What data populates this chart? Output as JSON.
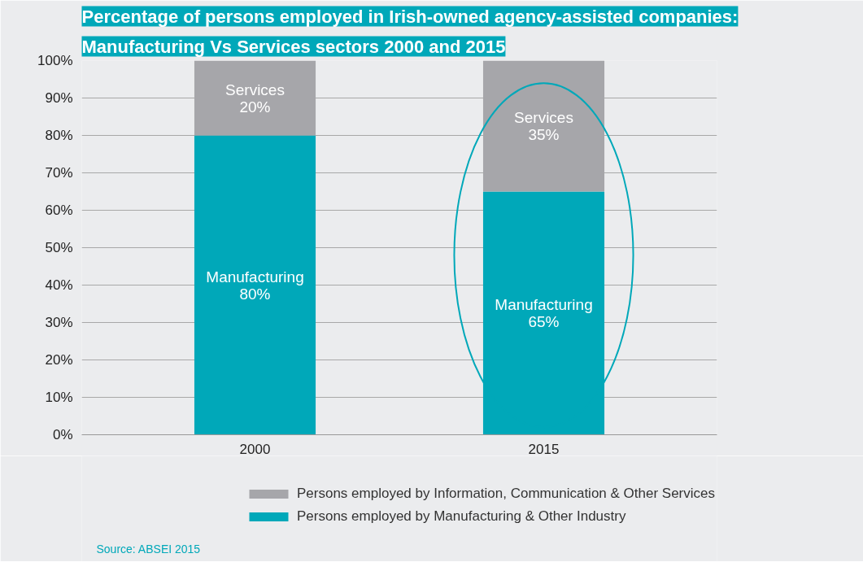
{
  "chart_data": {
    "type": "bar",
    "title": "Percentage of persons employed in Irish-owned agency-assisted companies:",
    "subtitle": "Manufacturing Vs Services sectors 2000 and 2015",
    "categories": [
      "2000",
      "2015"
    ],
    "stacked": true,
    "series": [
      {
        "name": "Persons employed by Manufacturing & Other Industry",
        "color": "#00a8b9",
        "values": [
          80,
          65
        ],
        "value_labels": [
          "Manufacturing\n80%",
          "Manufacturing\n65%"
        ]
      },
      {
        "name": "Persons employed by Information, Communication & Other Services",
        "color": "#a6a6aa",
        "values": [
          20,
          35
        ],
        "value_labels": [
          "Services\n20%",
          "Services\n35%"
        ]
      }
    ],
    "ylim": [
      0,
      100
    ],
    "yticks": [
      {
        "value": 0,
        "label": "0%"
      },
      {
        "value": 10,
        "label": "10%"
      },
      {
        "value": 20,
        "label": "20%"
      },
      {
        "value": 30,
        "label": "30%"
      },
      {
        "value": 40,
        "label": "40%"
      },
      {
        "value": 50,
        "label": "50%"
      },
      {
        "value": 60,
        "label": "60%"
      },
      {
        "value": 70,
        "label": "70%"
      },
      {
        "value": 80,
        "label": "80%"
      },
      {
        "value": 90,
        "label": "90%"
      },
      {
        "value": 100,
        "label": "100%"
      }
    ],
    "grid": "y",
    "legend": "bottom",
    "annotations": [
      "Source: ABSEI 2015"
    ]
  }
}
